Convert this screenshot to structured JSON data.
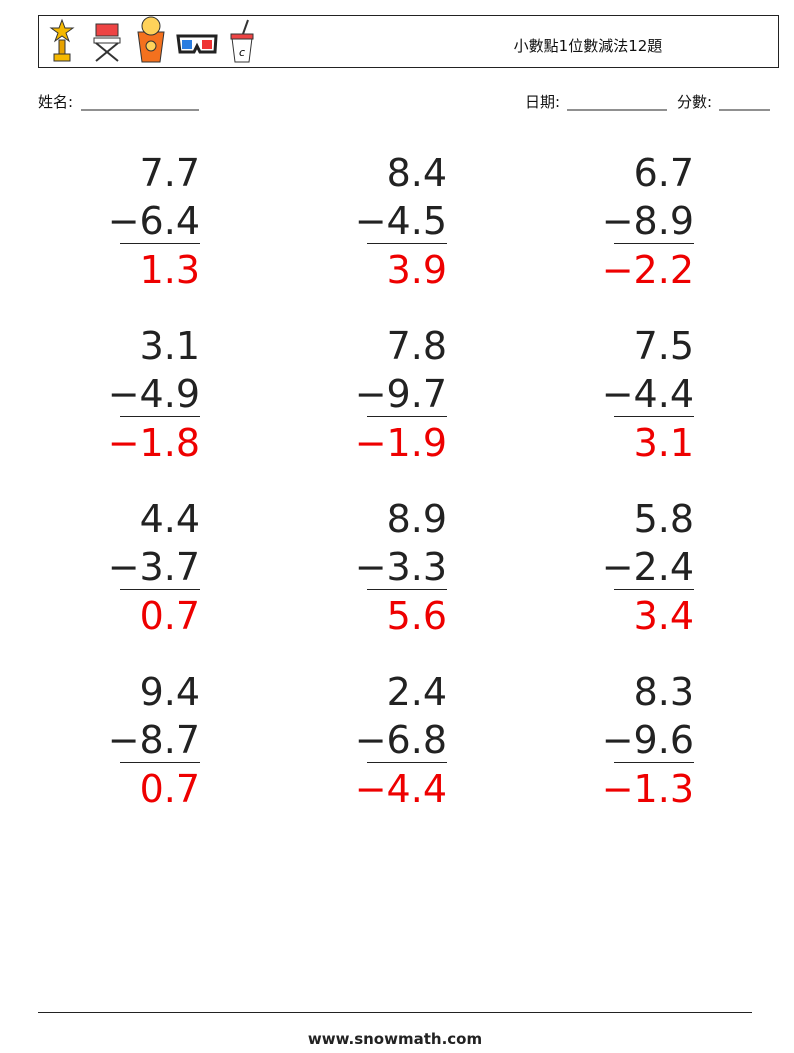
{
  "header": {
    "title": "小數點1位數減法12題"
  },
  "fields": {
    "name": "姓名:",
    "date": "日期:",
    "score": "分數:"
  },
  "problems": [
    {
      "top": "7.7",
      "bottom": "−6.4",
      "answer": "1.3"
    },
    {
      "top": "8.4",
      "bottom": "−4.5",
      "answer": "3.9"
    },
    {
      "top": "6.7",
      "bottom": "−8.9",
      "answer": "−2.2"
    },
    {
      "top": "3.1",
      "bottom": "−4.9",
      "answer": "−1.8"
    },
    {
      "top": "7.8",
      "bottom": "−9.7",
      "answer": "−1.9"
    },
    {
      "top": "7.5",
      "bottom": "−4.4",
      "answer": "3.1"
    },
    {
      "top": "4.4",
      "bottom": "−3.7",
      "answer": "0.7"
    },
    {
      "top": "8.9",
      "bottom": "−3.3",
      "answer": "5.6"
    },
    {
      "top": "5.8",
      "bottom": "−2.4",
      "answer": "3.4"
    },
    {
      "top": "9.4",
      "bottom": "−8.7",
      "answer": "0.7"
    },
    {
      "top": "2.4",
      "bottom": "−6.8",
      "answer": "−4.4"
    },
    {
      "top": "8.3",
      "bottom": "−9.6",
      "answer": "−1.3"
    }
  ],
  "footer": {
    "site": "www.snowmath.com"
  }
}
